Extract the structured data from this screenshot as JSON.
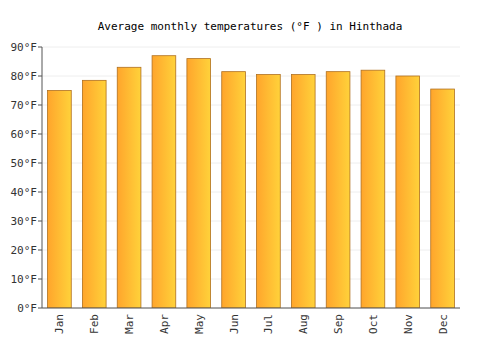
{
  "chart_data": {
    "type": "bar",
    "title": "Average monthly temperatures (°F ) in Hinthada",
    "categories": [
      "Jan",
      "Feb",
      "Mar",
      "Apr",
      "May",
      "Jun",
      "Jul",
      "Aug",
      "Sep",
      "Oct",
      "Nov",
      "Dec"
    ],
    "values": [
      75,
      78.5,
      83,
      87,
      86,
      81.5,
      80.5,
      80.5,
      81.5,
      82,
      80,
      75.5
    ],
    "color": "#ffa52c",
    "ylim": [
      0,
      90
    ],
    "yticks": [
      {
        "value": 0,
        "label": "0°F"
      },
      {
        "value": 10,
        "label": "10°F"
      },
      {
        "value": 20,
        "label": "20°F"
      },
      {
        "value": 30,
        "label": "30°F"
      },
      {
        "value": 40,
        "label": "40°F"
      },
      {
        "value": 50,
        "label": "50°F"
      },
      {
        "value": 60,
        "label": "60°F"
      },
      {
        "value": 70,
        "label": "70°F"
      },
      {
        "value": 80,
        "label": "80°F"
      },
      {
        "value": 90,
        "label": "90°F"
      }
    ],
    "grid": true
  }
}
